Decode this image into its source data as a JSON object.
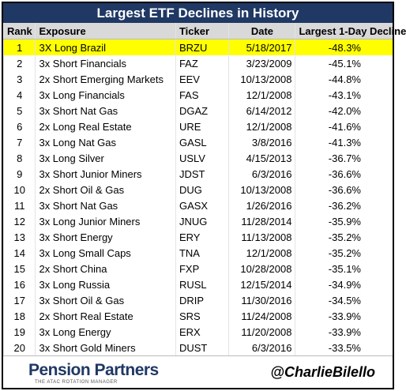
{
  "header": {
    "title": "Largest ETF Declines in History"
  },
  "table": {
    "columns": [
      "Rank",
      "Exposure",
      "Ticker",
      "Date",
      "Largest 1-Day Decline"
    ],
    "rows": [
      [
        "1",
        "3X Long Brazil",
        "BRZU",
        "5/18/2017",
        "-48.3%"
      ],
      [
        "2",
        "3x Short Financials",
        "FAZ",
        "3/23/2009",
        "-45.1%"
      ],
      [
        "3",
        "2x Short Emerging Markets",
        "EEV",
        "10/13/2008",
        "-44.8%"
      ],
      [
        "4",
        "3x Long Financials",
        "FAS",
        "12/1/2008",
        "-43.1%"
      ],
      [
        "5",
        "3x Short Nat Gas",
        "DGAZ",
        "6/14/2012",
        "-42.0%"
      ],
      [
        "6",
        "2x Long Real Estate",
        "URE",
        "12/1/2008",
        "-41.6%"
      ],
      [
        "7",
        "3x Long Nat Gas",
        "GASL",
        "3/8/2016",
        "-41.3%"
      ],
      [
        "8",
        "3x Long Silver",
        "USLV",
        "4/15/2013",
        "-36.7%"
      ],
      [
        "9",
        "3x Short Junior Miners",
        "JDST",
        "6/3/2016",
        "-36.6%"
      ],
      [
        "10",
        "2x Short Oil & Gas",
        "DUG",
        "10/13/2008",
        "-36.6%"
      ],
      [
        "11",
        "3x Short Nat Gas",
        "GASX",
        "1/26/2016",
        "-36.2%"
      ],
      [
        "12",
        "3x Long Junior Miners",
        "JNUG",
        "11/28/2014",
        "-35.9%"
      ],
      [
        "13",
        "3x Short Energy",
        "ERY",
        "11/13/2008",
        "-35.2%"
      ],
      [
        "14",
        "3x Long Small Caps",
        "TNA",
        "12/1/2008",
        "-35.2%"
      ],
      [
        "15",
        "2x Short China",
        "FXP",
        "10/28/2008",
        "-35.1%"
      ],
      [
        "16",
        "3x Long Russia",
        "RUSL",
        "12/15/2014",
        "-34.9%"
      ],
      [
        "17",
        "3x Short Oil & Gas",
        "DRIP",
        "11/30/2016",
        "-34.5%"
      ],
      [
        "18",
        "2x Short Real Estate",
        "SRS",
        "11/24/2008",
        "-33.9%"
      ],
      [
        "19",
        "3x Long Energy",
        "ERX",
        "11/20/2008",
        "-33.9%"
      ],
      [
        "20",
        "3x Short Gold Miners",
        "DUST",
        "6/3/2016",
        "-33.5%"
      ]
    ]
  },
  "footer": {
    "brand": "Pension Partners",
    "tagline": "THE ATAC ROTATION MANAGER",
    "handle": "@CharlieBilello"
  }
}
